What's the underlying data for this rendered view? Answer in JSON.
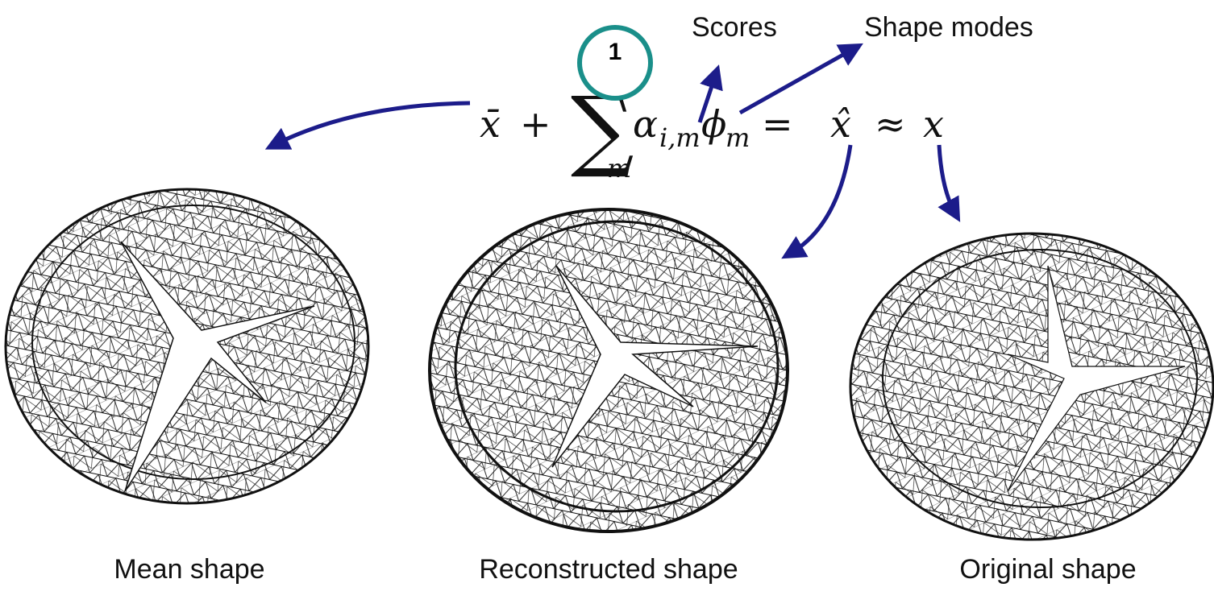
{
  "formula": {
    "mean": "x̄",
    "plus": "+",
    "sum": "∑",
    "upper": "1",
    "lower": "m",
    "alpha": "α",
    "alpha_sub": "i,m",
    "phi": "ϕ",
    "phi_sub": "m",
    "equals": "=",
    "xhat": "x̂",
    "approx": "≈",
    "x": "x"
  },
  "labels": {
    "scores": "Scores",
    "shape_modes": "Shape modes"
  },
  "captions": [
    "Mean shape",
    "Reconstructed shape",
    "Original shape"
  ]
}
